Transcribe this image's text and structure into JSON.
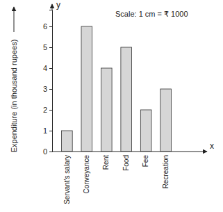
{
  "chart_data": {
    "type": "bar",
    "y_label": "Expenditure (in thousand rupees)",
    "axis_letters": {
      "x": "x",
      "y": "y"
    },
    "annotations": [
      "Scale: 1 cm = ₹ 1000"
    ],
    "categories": [
      "Servant's salary",
      "Conveyance",
      "Rent",
      "Food",
      "Fee",
      "Recreation"
    ],
    "values": [
      1,
      6,
      4,
      5,
      2,
      3
    ],
    "color": "#d6d6d6",
    "ylim": [
      0,
      6.8
    ],
    "yticks": [
      0,
      1,
      2,
      3,
      4,
      5,
      6
    ],
    "grid": false
  }
}
